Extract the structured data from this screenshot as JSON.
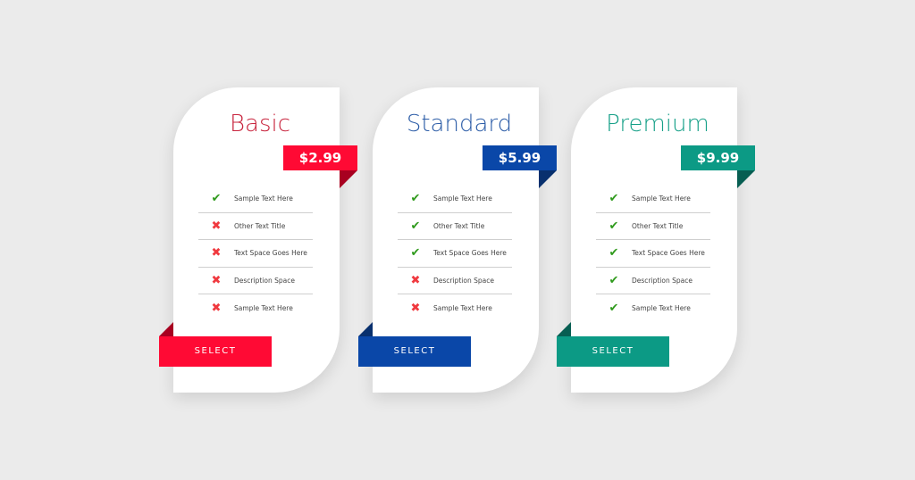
{
  "plans": [
    {
      "name": "Basic",
      "price": "$2.99",
      "button": "SELECT",
      "color": "#c8253e",
      "accent": "#ff0a34",
      "dark": "#a80020",
      "features": [
        {
          "text": "Sample Text Here",
          "included": true
        },
        {
          "text": "Other Text Title",
          "included": false
        },
        {
          "text": "Text Space Goes Here",
          "included": false
        },
        {
          "text": "Description Space",
          "included": false
        },
        {
          "text": "Sample Text Here",
          "included": false
        }
      ]
    },
    {
      "name": "Standard",
      "price": "$5.99",
      "button": "SELECT",
      "color": "#2e5ea8",
      "accent": "#0a47a8",
      "dark": "#08306e",
      "features": [
        {
          "text": "Sample Text Here",
          "included": true
        },
        {
          "text": "Other Text Title",
          "included": true
        },
        {
          "text": "Text Space Goes Here",
          "included": true
        },
        {
          "text": "Description Space",
          "included": false
        },
        {
          "text": "Sample Text Here",
          "included": false
        }
      ]
    },
    {
      "name": "Premium",
      "price": "$9.99",
      "button": "SELECT",
      "color": "#17a088",
      "accent": "#0c9a85",
      "dark": "#075e52",
      "features": [
        {
          "text": "Sample Text Here",
          "included": true
        },
        {
          "text": "Other Text Title",
          "included": true
        },
        {
          "text": "Text Space Goes Here",
          "included": true
        },
        {
          "text": "Description Space",
          "included": true
        },
        {
          "text": "Sample Text Here",
          "included": true
        }
      ]
    }
  ],
  "icons": {
    "included": "check-icon",
    "excluded": "cross-icon"
  }
}
